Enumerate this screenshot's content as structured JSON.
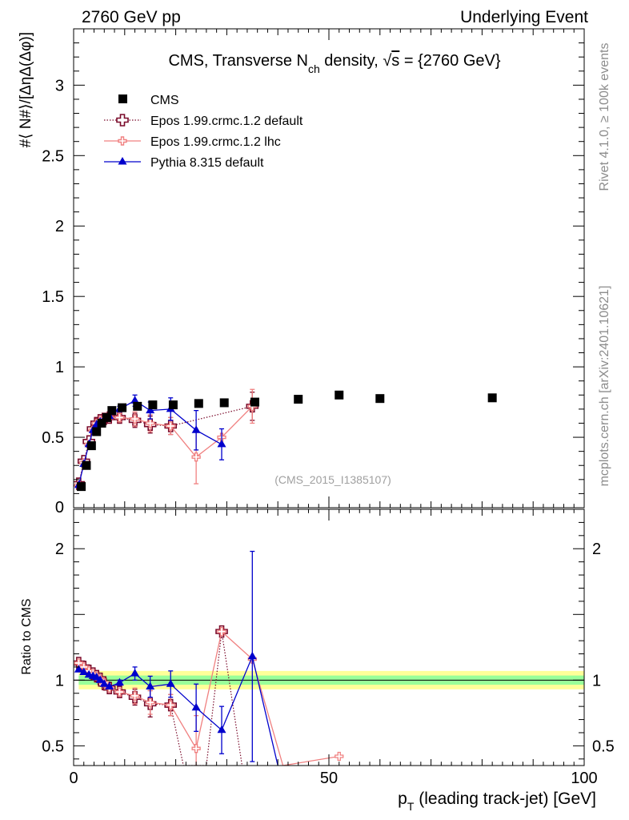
{
  "header": {
    "left": "2760 GeV pp",
    "right": "Underlying Event"
  },
  "side_labels": {
    "rivet": "Rivet 4.1.0, ≥ 100k events",
    "mcplots": "mcplots.cern.ch [arXiv:2401.10621]"
  },
  "chart_data": [
    {
      "type": "scatter",
      "panel": "main",
      "title_parts": {
        "pre": "CMS, Transverse N",
        "sub": "ch",
        "mid": " density, ",
        "sqrt": "√",
        "s": "s",
        "post": " = {2760 GeV}"
      },
      "ylabel": "#⟨ N#⟩/[ΔηΔ(Δφ)]",
      "watermark": "(CMS_2015_I1385107)",
      "xlim": [
        0,
        100
      ],
      "ylim": [
        0,
        3.4
      ],
      "yticks": [
        {
          "v": 0.5,
          "label": "0.5"
        },
        {
          "v": 1,
          "label": "1"
        },
        {
          "v": 1.5,
          "label": "1.5"
        },
        {
          "v": 2,
          "label": "2"
        },
        {
          "v": 2.5,
          "label": "2.5"
        },
        {
          "v": 3,
          "label": "3"
        }
      ],
      "y_zero_label": "0",
      "series": [
        {
          "name": "CMS",
          "color": "#000000",
          "marker": "square",
          "line": "none",
          "x": [
            1.5,
            2.5,
            3.5,
            4.5,
            5.5,
            6.5,
            7.5,
            9.5,
            12.5,
            15.5,
            19.5,
            24.5,
            29.5,
            35.5,
            44.0,
            52.0,
            60.0,
            82.0
          ],
          "y": [
            0.15,
            0.3,
            0.44,
            0.54,
            0.6,
            0.64,
            0.69,
            0.71,
            0.72,
            0.73,
            0.73,
            0.74,
            0.745,
            0.75,
            0.77,
            0.8,
            0.775,
            0.78
          ],
          "err": [
            0,
            0,
            0,
            0,
            0,
            0,
            0,
            0,
            0,
            0,
            0,
            0,
            0,
            0,
            0,
            0,
            0,
            0
          ]
        },
        {
          "name": "Epos 1.99.crmc.1.2 default",
          "color": "#7a0a2a",
          "marker": "cross-open",
          "line": "dotted",
          "x": [
            1.0,
            2.0,
            3.0,
            3.8,
            4.5,
            5.2,
            6.0,
            7.0,
            9.0,
            12.0,
            15.0,
            19.0,
            35.0
          ],
          "y": [
            0.17,
            0.33,
            0.47,
            0.56,
            0.6,
            0.62,
            0.63,
            0.64,
            0.64,
            0.62,
            0.59,
            0.58,
            0.72
          ],
          "err": [
            0,
            0,
            0,
            0,
            0,
            0,
            0,
            0,
            0.03,
            0.05,
            0.06,
            0.06,
            0.1
          ]
        },
        {
          "name": "Epos 1.99.crmc.1.2 lhc",
          "color": "#f08080",
          "marker": "cross-small",
          "line": "solid",
          "x": [
            1.0,
            2.0,
            3.0,
            3.8,
            4.5,
            5.2,
            6.0,
            7.0,
            9.0,
            12.0,
            15.0,
            19.0,
            24.0,
            29.0,
            35.0
          ],
          "y": [
            0.16,
            0.32,
            0.45,
            0.55,
            0.6,
            0.62,
            0.63,
            0.64,
            0.64,
            0.63,
            0.6,
            0.58,
            0.36,
            0.5,
            0.72
          ],
          "err": [
            0,
            0,
            0,
            0,
            0,
            0,
            0,
            0,
            0.03,
            0.05,
            0.06,
            0.06,
            0.19,
            0,
            0.12
          ]
        },
        {
          "name": "Pythia 8.315 default",
          "color": "#0000cc",
          "marker": "triangle",
          "line": "solid",
          "x": [
            1.0,
            2.0,
            3.0,
            3.8,
            4.5,
            5.2,
            6.0,
            7.0,
            9.0,
            12.0,
            15.0,
            19.0,
            24.0,
            29.0
          ],
          "y": [
            0.16,
            0.31,
            0.45,
            0.55,
            0.59,
            0.61,
            0.63,
            0.65,
            0.7,
            0.76,
            0.69,
            0.7,
            0.55,
            0.45
          ],
          "err": [
            0,
            0,
            0,
            0,
            0,
            0,
            0,
            0,
            0.02,
            0.04,
            0.06,
            0.08,
            0.14,
            0.11
          ]
        }
      ]
    },
    {
      "type": "scatter",
      "panel": "ratio",
      "ylabel": "Ratio to CMS",
      "xlabel_parts": {
        "pre": "p",
        "sub": "T",
        "post": " (leading track-jet) [GeV]"
      },
      "xlim": [
        0,
        100
      ],
      "ylim": [
        0.35,
        2.3
      ],
      "xticks": [
        {
          "v": 0,
          "label": "0"
        },
        {
          "v": 50,
          "label": "50"
        },
        {
          "v": 100,
          "label": "100"
        }
      ],
      "yticks": [
        {
          "v": 0.5,
          "label": "0.5"
        },
        {
          "v": 1,
          "label": "1"
        },
        {
          "v": 2,
          "label": "2"
        }
      ],
      "band": {
        "x": [
          1.0,
          100.0
        ],
        "yellow_half": 0.07,
        "green_half": 0.035,
        "yellow_color": "#ffff99",
        "green_color": "#99ff99"
      },
      "series": [
        {
          "name": "Epos 1.99.crmc.1.2 default",
          "color": "#7a0a2a",
          "line": "dotted",
          "marker": "cross-open",
          "x": [
            1.0,
            2.0,
            3.0,
            3.8,
            4.5,
            5.2,
            6.0,
            7.0,
            9.0,
            12.0,
            15.0,
            19.0,
            21.5,
            26.0,
            29.0,
            33.0
          ],
          "y": [
            1.13,
            1.1,
            1.07,
            1.05,
            1.03,
            1.01,
            0.97,
            0.94,
            0.91,
            0.87,
            0.82,
            0.81,
            0.35,
            0.35,
            1.37,
            0.35
          ],
          "err": [
            0,
            0,
            0,
            0,
            0,
            0,
            0,
            0,
            0.03,
            0.06,
            0.1,
            0.08,
            0,
            0,
            0,
            0
          ]
        },
        {
          "name": "Epos 1.99.crmc.1.2 lhc",
          "color": "#f08080",
          "line": "solid",
          "marker": "cross-small",
          "x": [
            1.0,
            2.0,
            3.0,
            3.8,
            4.5,
            5.2,
            6.0,
            7.0,
            9.0,
            12.0,
            15.0,
            19.0,
            24.0,
            29.0,
            35.0,
            41.0,
            52.0
          ],
          "y": [
            1.13,
            1.1,
            1.07,
            1.05,
            1.03,
            1.01,
            0.98,
            0.94,
            0.91,
            0.88,
            0.83,
            0.81,
            0.48,
            1.37,
            1.16,
            0.35,
            0.42
          ],
          "err": [
            0,
            0,
            0,
            0,
            0,
            0,
            0,
            0,
            0.03,
            0.06,
            0.09,
            0.08,
            0.25,
            0,
            0,
            0,
            0
          ]
        },
        {
          "name": "Pythia 8.315 default",
          "color": "#0000cc",
          "line": "solid",
          "marker": "triangle",
          "x": [
            1.0,
            2.0,
            3.0,
            3.8,
            4.5,
            5.2,
            6.0,
            7.0,
            9.0,
            12.0,
            15.0,
            19.0,
            24.0,
            29.0,
            35.0,
            40.0
          ],
          "y": [
            1.08,
            1.06,
            1.04,
            1.03,
            1.02,
            1.0,
            0.97,
            0.95,
            0.98,
            1.05,
            0.95,
            0.97,
            0.79,
            0.62,
            1.18,
            0.35
          ],
          "err": [
            0,
            0,
            0,
            0,
            0,
            0,
            0,
            0,
            0.02,
            0.05,
            0.08,
            0.1,
            0.18,
            0.18,
            0.8,
            0
          ]
        }
      ]
    }
  ]
}
